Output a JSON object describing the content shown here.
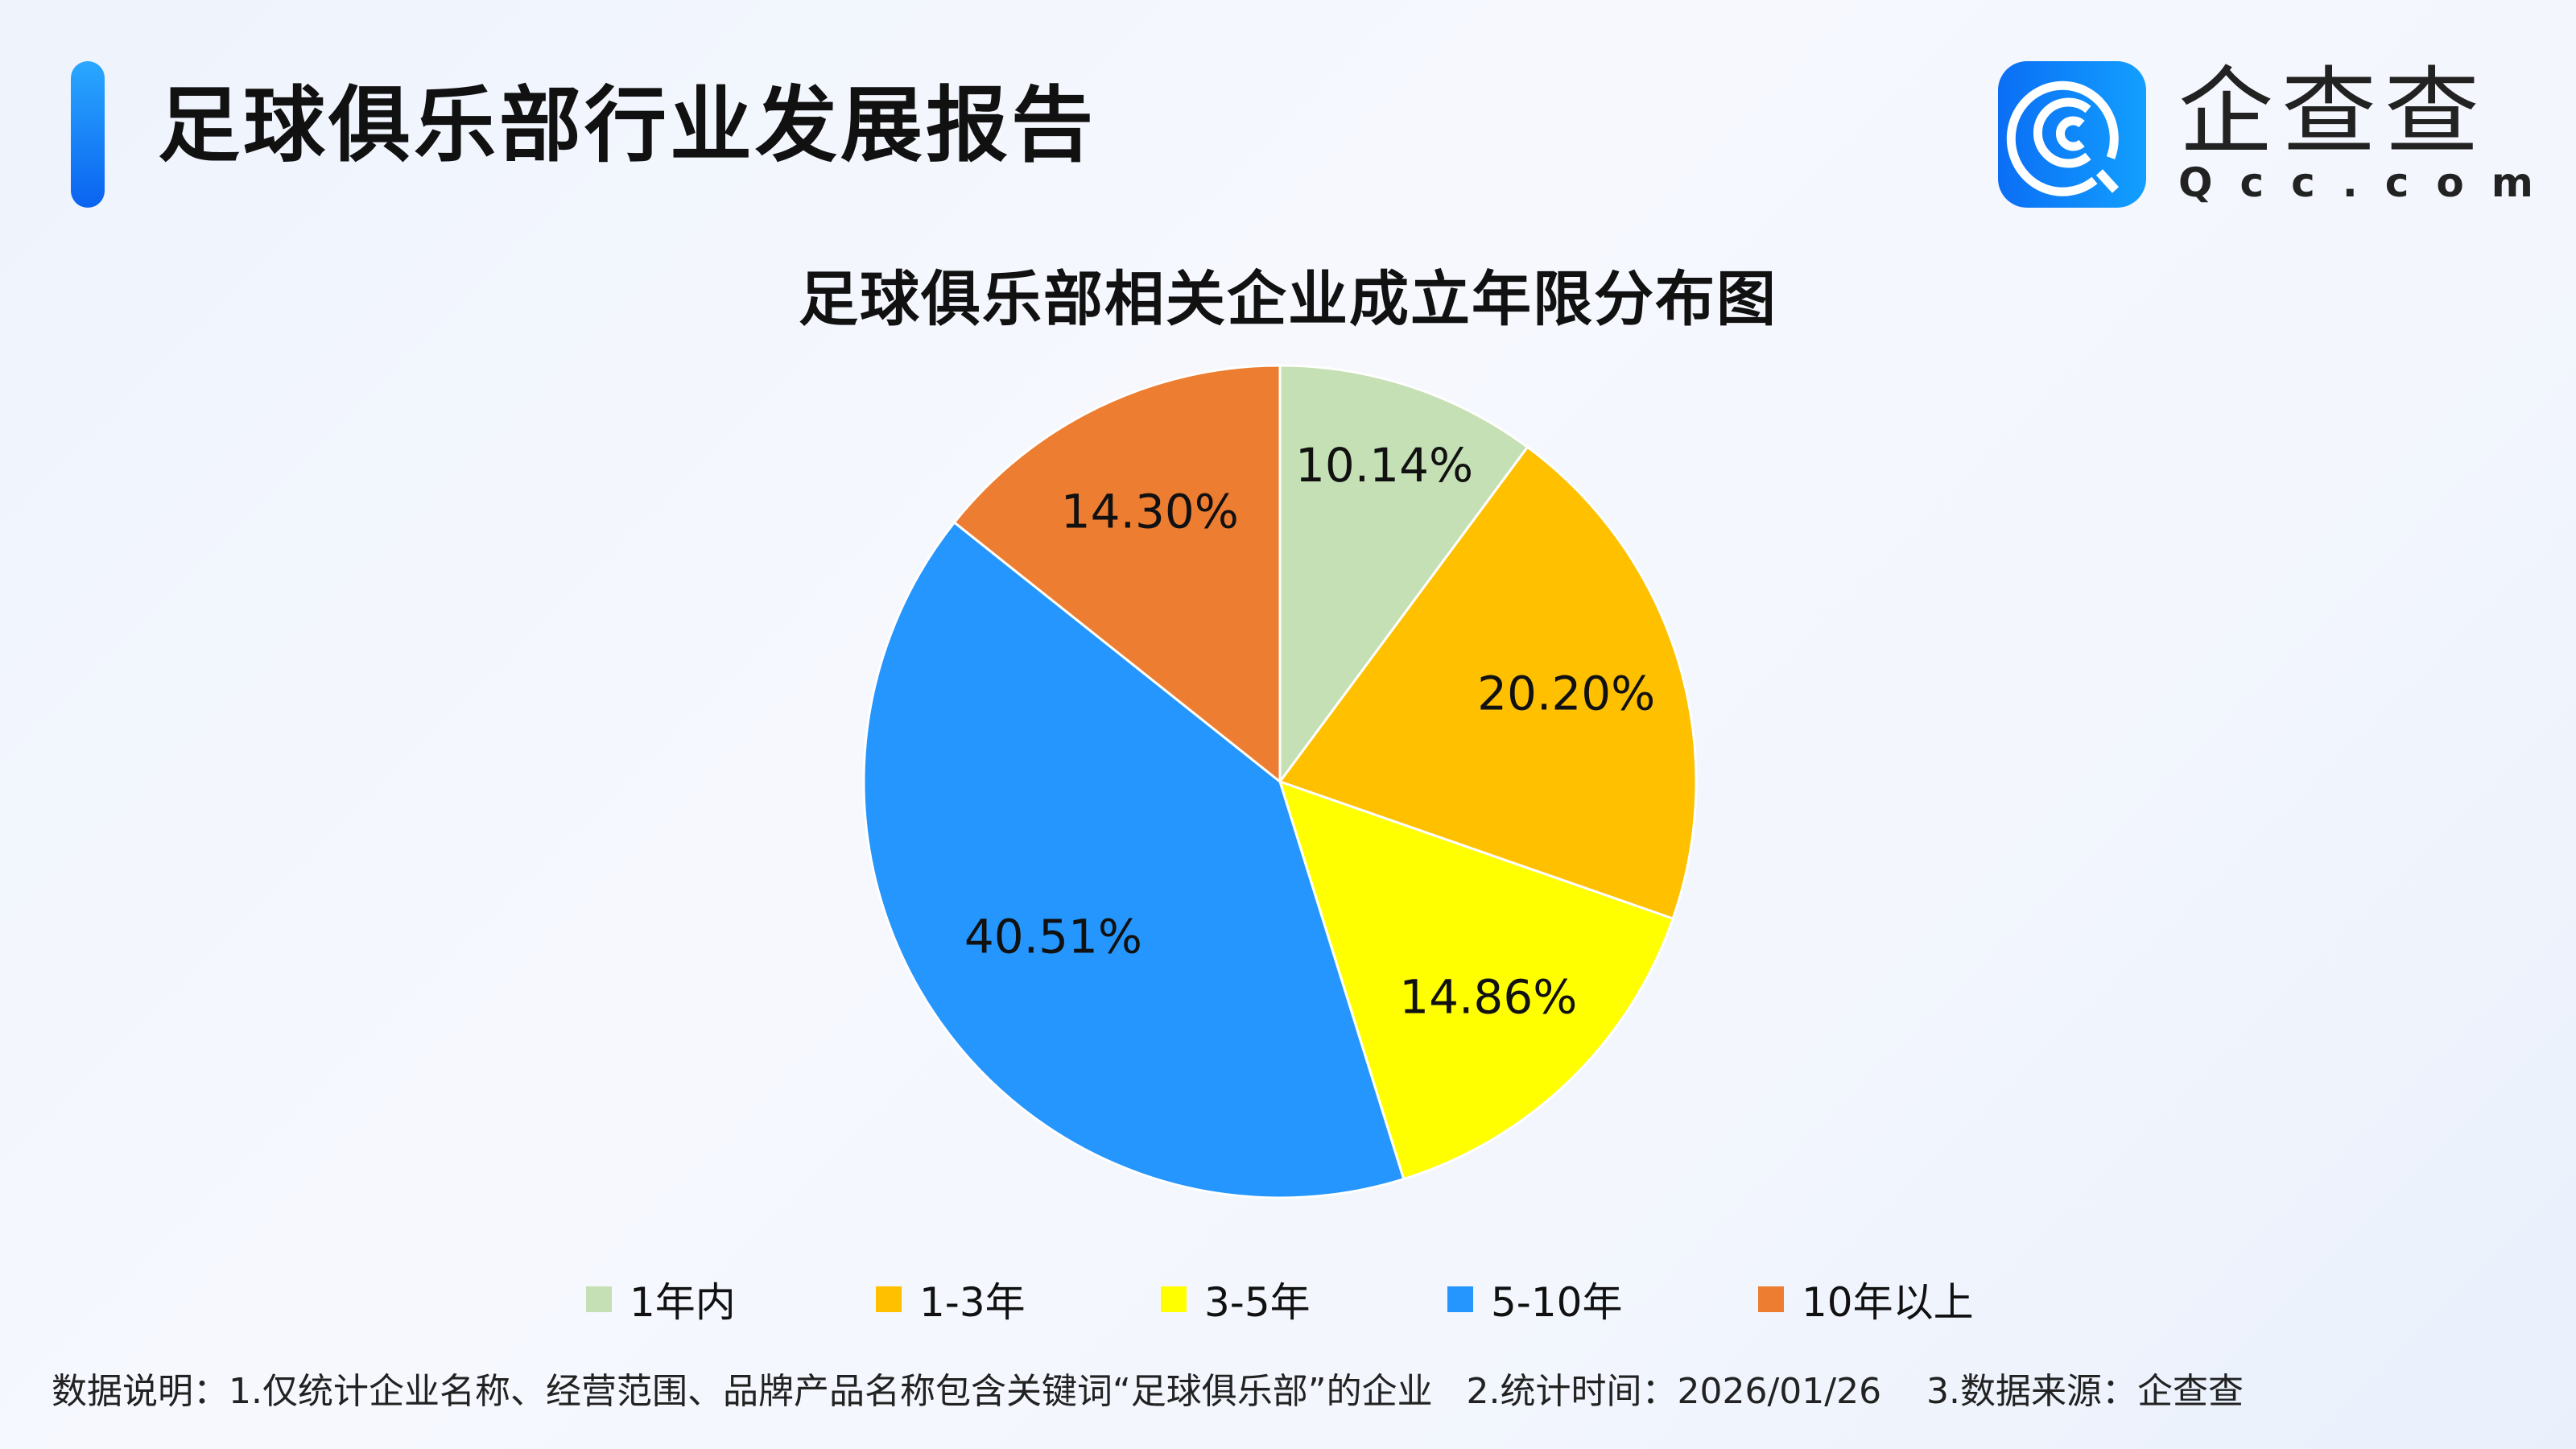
{
  "header": {
    "title": "足球俱乐部行业发展报告"
  },
  "logo": {
    "cn": "企查查",
    "en": "Qcc.com",
    "icon": "qcc-logo-icon"
  },
  "chart_data": {
    "type": "pie",
    "title": "足球俱乐部相关企业成立年限分布图",
    "categories": [
      "1年内",
      "1-3年",
      "3-5年",
      "5-10年",
      "10年以上"
    ],
    "values": [
      10.14,
      20.2,
      14.86,
      40.51,
      14.3
    ],
    "labels": [
      "10.14%",
      "20.20%",
      "14.86%",
      "40.51%",
      "14.30%"
    ],
    "colors": [
      "#c5e0b4",
      "#ffc000",
      "#ffff00",
      "#2596fd",
      "#ed7d31"
    ],
    "start_angle": "top",
    "direction": "clockwise",
    "legend_position": "bottom"
  },
  "footer": {
    "note": "数据说明：1.仅统计企业名称、经营范围、品牌产品名称包含关键词“足球俱乐部”的企业   2.统计时间：2026/01/26    3.数据来源：企查查"
  }
}
